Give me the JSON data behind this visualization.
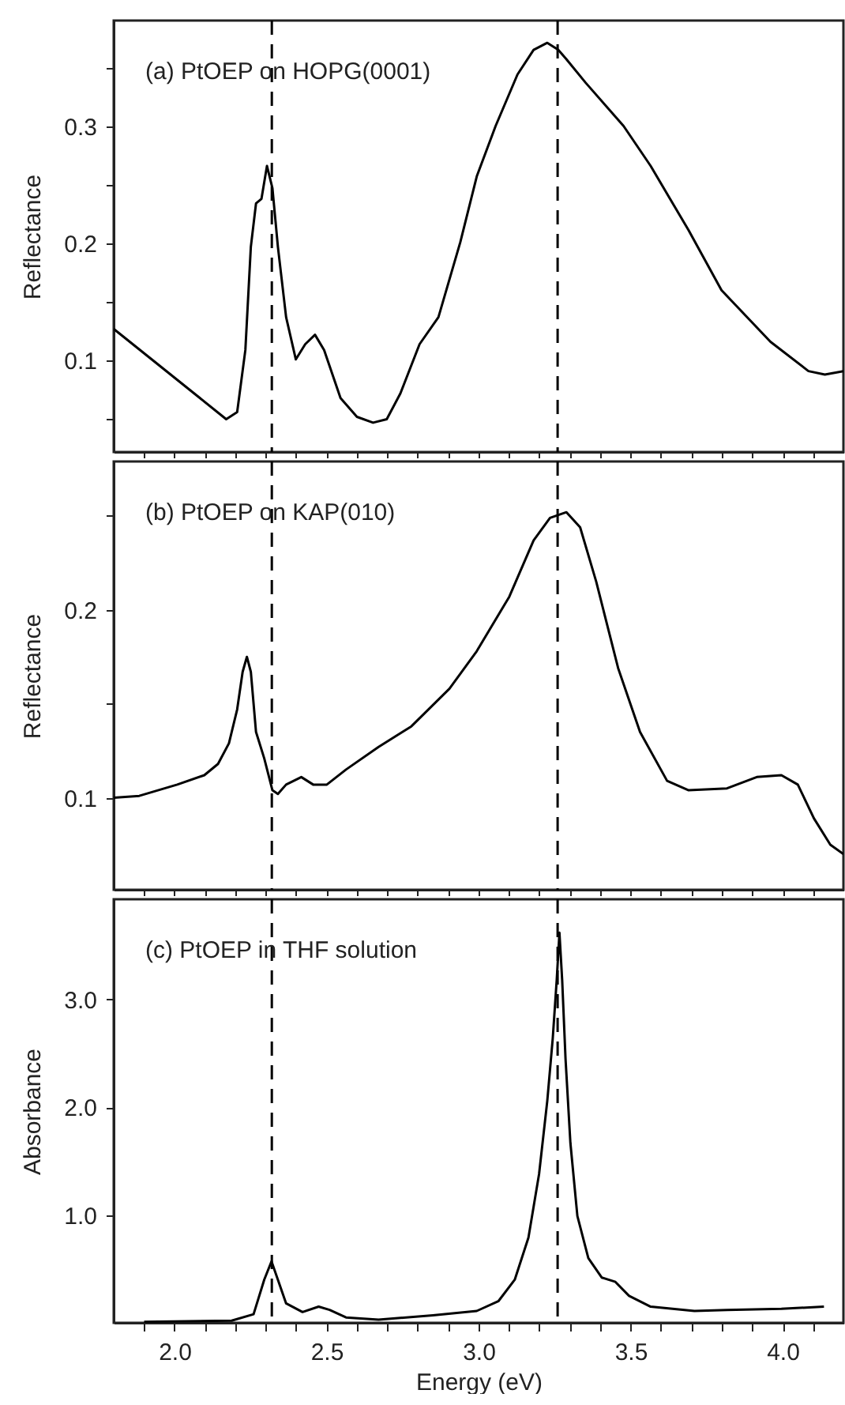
{
  "chart_data": [
    {
      "type": "line",
      "title": "(a) PtOEP on HOPG(0001)",
      "ylabel": "Reflectance",
      "xlim": [
        1.8,
        4.2
      ],
      "ylim": [
        0.022,
        0.39
      ],
      "xticks": [
        {
          "value": 1.9,
          "label": null
        },
        {
          "value": 2,
          "label": null
        },
        {
          "value": 2.1,
          "label": null
        },
        {
          "value": 2.2,
          "label": null
        },
        {
          "value": 2.3,
          "label": null
        },
        {
          "value": 2.4,
          "label": null
        },
        {
          "value": 2.5,
          "label": null
        },
        {
          "value": 2.6,
          "label": null
        },
        {
          "value": 2.7,
          "label": null
        },
        {
          "value": 2.8,
          "label": null
        },
        {
          "value": 2.9,
          "label": null
        },
        {
          "value": 3,
          "label": null
        },
        {
          "value": 3.1,
          "label": null
        },
        {
          "value": 3.2,
          "label": null
        },
        {
          "value": 3.3,
          "label": null
        },
        {
          "value": 3.4,
          "label": null
        },
        {
          "value": 3.5,
          "label": null
        },
        {
          "value": 3.6,
          "label": null
        },
        {
          "value": 3.7,
          "label": null
        },
        {
          "value": 3.8,
          "label": null
        },
        {
          "value": 3.9,
          "label": null
        },
        {
          "value": 4,
          "label": null
        },
        {
          "value": 4.1,
          "label": null
        }
      ],
      "yticks": [
        {
          "value": 0.05,
          "label": null
        },
        0.1,
        {
          "value": 0.15,
          "label": null
        },
        0.2,
        {
          "value": 0.25,
          "label": null
        },
        0.3,
        {
          "value": 0.35,
          "label": null
        }
      ],
      "tick_labels": "y",
      "series": [
        {
          "color": "#000000",
          "x": [
            1.8,
            2.17,
            2.206,
            2.233,
            2.251,
            2.268,
            2.286,
            2.304,
            2.322,
            2.34,
            2.367,
            2.399,
            2.43,
            2.462,
            2.492,
            2.546,
            2.6,
            2.653,
            2.698,
            2.743,
            2.806,
            2.868,
            2.94,
            2.994,
            3.056,
            3.128,
            3.181,
            3.226,
            3.262,
            3.289,
            3.352,
            3.477,
            3.566,
            3.691,
            3.799,
            3.96,
            4.085,
            4.139,
            4.2
          ],
          "values": [
            0.127,
            0.05,
            0.056,
            0.109,
            0.197,
            0.234,
            0.238,
            0.266,
            0.247,
            0.197,
            0.137,
            0.101,
            0.114,
            0.122,
            0.109,
            0.068,
            0.052,
            0.047,
            0.05,
            0.072,
            0.114,
            0.137,
            0.201,
            0.257,
            0.3,
            0.344,
            0.365,
            0.371,
            0.365,
            0.357,
            0.337,
            0.3,
            0.266,
            0.211,
            0.16,
            0.116,
            0.091,
            0.088,
            0.091
          ]
        }
      ],
      "ref_lines": [
        {
          "axis": "x",
          "value": 2.32,
          "color": "#000000",
          "line_style": "dashed"
        },
        {
          "axis": "x",
          "value": 3.26,
          "color": "#000000",
          "line_style": "dashed"
        }
      ]
    },
    {
      "type": "line",
      "title": "(b) PtOEP on KAP(010)",
      "ylabel": "Reflectance",
      "xlim": [
        1.8,
        4.2
      ],
      "ylim": [
        0.051,
        0.279
      ],
      "xticks": [
        {
          "value": 1.9,
          "label": null
        },
        {
          "value": 2,
          "label": null
        },
        {
          "value": 2.1,
          "label": null
        },
        {
          "value": 2.2,
          "label": null
        },
        {
          "value": 2.3,
          "label": null
        },
        {
          "value": 2.4,
          "label": null
        },
        {
          "value": 2.5,
          "label": null
        },
        {
          "value": 2.6,
          "label": null
        },
        {
          "value": 2.7,
          "label": null
        },
        {
          "value": 2.8,
          "label": null
        },
        {
          "value": 2.9,
          "label": null
        },
        {
          "value": 3,
          "label": null
        },
        {
          "value": 3.1,
          "label": null
        },
        {
          "value": 3.2,
          "label": null
        },
        {
          "value": 3.3,
          "label": null
        },
        {
          "value": 3.4,
          "label": null
        },
        {
          "value": 3.5,
          "label": null
        },
        {
          "value": 3.6,
          "label": null
        },
        {
          "value": 3.7,
          "label": null
        },
        {
          "value": 3.8,
          "label": null
        },
        {
          "value": 3.9,
          "label": null
        },
        {
          "value": 4,
          "label": null
        },
        {
          "value": 4.1,
          "label": null
        }
      ],
      "yticks": [
        0.1,
        {
          "value": 0.15,
          "label": null
        },
        0.2,
        {
          "value": 0.25,
          "label": null
        }
      ],
      "tick_labels": "y",
      "series": [
        {
          "color": "#000000",
          "x": [
            1.8,
            1.884,
            2.009,
            2.098,
            2.143,
            2.179,
            2.206,
            2.224,
            2.238,
            2.251,
            2.268,
            2.295,
            2.322,
            2.34,
            2.367,
            2.417,
            2.456,
            2.501,
            2.564,
            2.671,
            2.779,
            2.904,
            2.994,
            3.101,
            3.181,
            3.235,
            3.289,
            3.334,
            3.387,
            3.459,
            3.531,
            3.62,
            3.691,
            3.817,
            3.915,
            3.996,
            4.05,
            4.103,
            4.157,
            4.2
          ],
          "values": [
            0.1,
            0.101,
            0.107,
            0.112,
            0.118,
            0.129,
            0.147,
            0.167,
            0.175,
            0.167,
            0.135,
            0.121,
            0.104,
            0.102,
            0.107,
            0.111,
            0.107,
            0.107,
            0.115,
            0.127,
            0.138,
            0.158,
            0.178,
            0.207,
            0.237,
            0.249,
            0.252,
            0.244,
            0.215,
            0.169,
            0.135,
            0.109,
            0.104,
            0.105,
            0.111,
            0.112,
            0.107,
            0.089,
            0.075,
            0.07
          ]
        }
      ],
      "ref_lines": [
        {
          "axis": "x",
          "value": 2.32,
          "color": "#000000",
          "line_style": "dashed"
        },
        {
          "axis": "x",
          "value": 3.26,
          "color": "#000000",
          "line_style": "dashed"
        }
      ]
    },
    {
      "type": "line",
      "title": "(c) PtOEP in THF solution",
      "xlabel": "Energy (eV)",
      "ylabel": "Absorbance",
      "xlim": [
        1.8,
        4.2
      ],
      "ylim": [
        0,
        3.93
      ],
      "xticks": [
        {
          "value": 1.9,
          "label": null
        },
        {
          "value": 2,
          "label": "2.0"
        },
        {
          "value": 2.1,
          "label": null
        },
        {
          "value": 2.2,
          "label": null
        },
        {
          "value": 2.3,
          "label": null
        },
        {
          "value": 2.4,
          "label": null
        },
        {
          "value": 2.5,
          "label": "2.5"
        },
        {
          "value": 2.6,
          "label": null
        },
        {
          "value": 2.7,
          "label": null
        },
        {
          "value": 2.8,
          "label": null
        },
        {
          "value": 2.9,
          "label": null
        },
        {
          "value": 3,
          "label": "3.0"
        },
        {
          "value": 3.1,
          "label": null
        },
        {
          "value": 3.2,
          "label": null
        },
        {
          "value": 3.3,
          "label": null
        },
        {
          "value": 3.4,
          "label": null
        },
        {
          "value": 3.5,
          "label": "3.5"
        },
        {
          "value": 3.6,
          "label": null
        },
        {
          "value": 3.7,
          "label": null
        },
        {
          "value": 3.8,
          "label": null
        },
        {
          "value": 3.9,
          "label": null
        },
        {
          "value": 4,
          "label": "4.0"
        },
        {
          "value": 4.1,
          "label": null
        }
      ],
      "yticks": [
        {
          "value": 1,
          "label": "1.0"
        },
        {
          "value": 2,
          "label": "2.0"
        },
        {
          "value": 3,
          "label": "3.0"
        }
      ],
      "series": [
        {
          "color": "#000000",
          "x": [
            1.9,
            2.188,
            2.26,
            2.295,
            2.319,
            2.34,
            2.367,
            2.421,
            2.474,
            2.51,
            2.564,
            2.671,
            2.85,
            2.994,
            3.065,
            3.119,
            3.164,
            3.199,
            3.226,
            3.244,
            3.257,
            3.266,
            3.275,
            3.286,
            3.302,
            3.325,
            3.361,
            3.405,
            3.45,
            3.495,
            3.566,
            3.71,
            3.817,
            3.996,
            4.136
          ],
          "values": [
            0.01,
            0.02,
            0.08,
            0.4,
            0.57,
            0.4,
            0.18,
            0.1,
            0.15,
            0.12,
            0.05,
            0.03,
            0.07,
            0.11,
            0.2,
            0.4,
            0.79,
            1.38,
            2.06,
            2.64,
            3.18,
            3.62,
            3.18,
            2.45,
            1.67,
            0.99,
            0.6,
            0.42,
            0.38,
            0.25,
            0.15,
            0.11,
            0.12,
            0.13,
            0.15
          ]
        }
      ],
      "ref_lines": [
        {
          "axis": "x",
          "value": 2.32,
          "color": "#000000",
          "line_style": "dashed"
        },
        {
          "axis": "x",
          "value": 3.26,
          "color": "#000000",
          "line_style": "dashed"
        }
      ]
    }
  ]
}
